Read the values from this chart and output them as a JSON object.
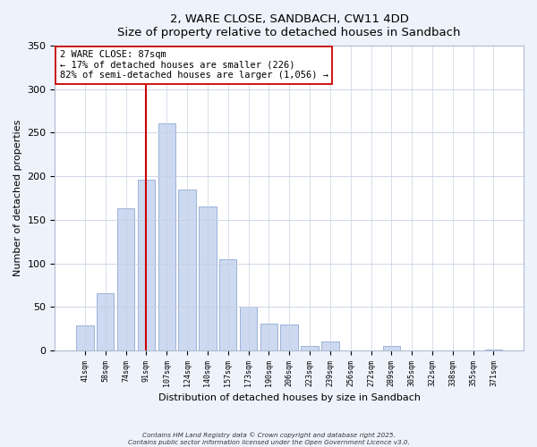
{
  "title": "2, WARE CLOSE, SANDBACH, CW11 4DD",
  "subtitle": "Size of property relative to detached houses in Sandbach",
  "xlabel": "Distribution of detached houses by size in Sandbach",
  "ylabel": "Number of detached properties",
  "bar_color": "#ccd9f0",
  "bar_edge_color": "#90aad4",
  "categories": [
    "41sqm",
    "58sqm",
    "74sqm",
    "91sqm",
    "107sqm",
    "124sqm",
    "140sqm",
    "157sqm",
    "173sqm",
    "190sqm",
    "206sqm",
    "223sqm",
    "239sqm",
    "256sqm",
    "272sqm",
    "289sqm",
    "305sqm",
    "322sqm",
    "338sqm",
    "355sqm",
    "371sqm"
  ],
  "values": [
    29,
    66,
    163,
    196,
    261,
    185,
    165,
    105,
    50,
    31,
    30,
    5,
    10,
    0,
    0,
    5,
    0,
    0,
    0,
    0,
    1
  ],
  "ylim": [
    0,
    350
  ],
  "yticks": [
    0,
    50,
    100,
    150,
    200,
    250,
    300,
    350
  ],
  "vline_index": 3,
  "vline_color": "#cc0000",
  "annotation_title": "2 WARE CLOSE: 87sqm",
  "annotation_line1": "← 17% of detached houses are smaller (226)",
  "annotation_line2": "82% of semi-detached houses are larger (1,056) →",
  "footer1": "Contains HM Land Registry data © Crown copyright and database right 2025.",
  "footer2": "Contains public sector information licensed under the Open Government Licence v3.0.",
  "background_color": "#eef2fb",
  "plot_background": "#ffffff",
  "grid_color": "#c8d0e0"
}
